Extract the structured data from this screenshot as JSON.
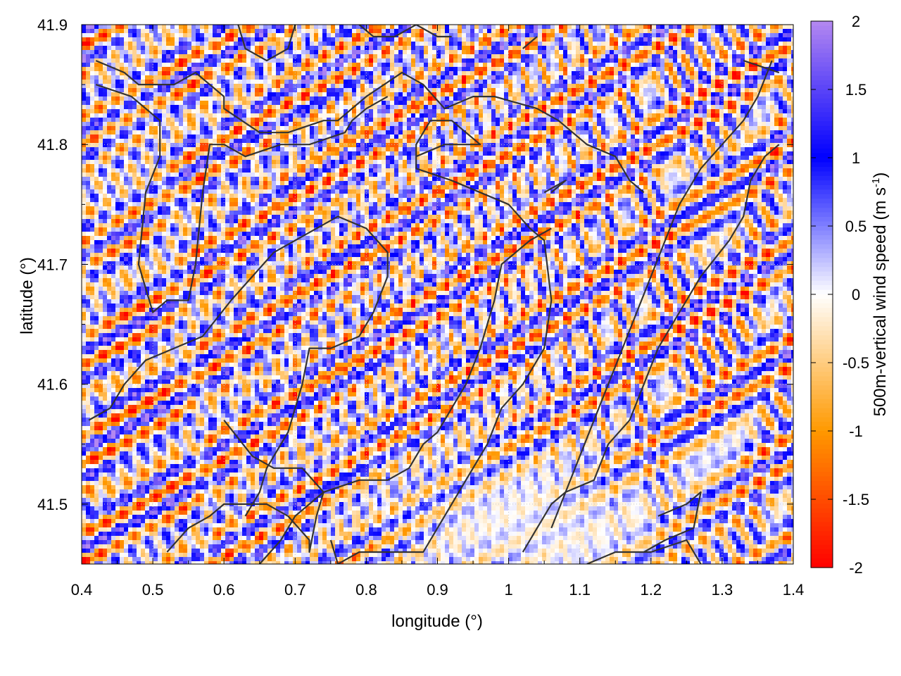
{
  "chart_data": {
    "type": "heatmap",
    "title": "",
    "xlabel": "longitude (°)",
    "ylabel": "latitude (°)",
    "xlim": [
      0.4,
      1.4
    ],
    "ylim": [
      41.45,
      41.9
    ],
    "xticks": [
      0.4,
      0.5,
      0.6,
      0.7,
      0.8,
      0.9,
      1.0,
      1.1,
      1.2,
      1.3,
      1.4
    ],
    "xtick_labels": [
      "0.4",
      "0.5",
      "0.6",
      "0.7",
      "0.8",
      "0.9",
      "1",
      "1.1",
      "1.2",
      "1.3",
      "1.4"
    ],
    "yticks": [
      41.5,
      41.6,
      41.7,
      41.8,
      41.9
    ],
    "ytick_labels": [
      "41.5",
      "41.6",
      "41.7",
      "41.8",
      "41.9"
    ],
    "colorbar": {
      "label_main": "500m-vertical wind speed (m s",
      "label_sup": "-1",
      "label_end": ")",
      "range": [
        -2,
        2
      ],
      "ticks": [
        2,
        1.5,
        1,
        0.5,
        0,
        -0.5,
        -1,
        -1.5,
        -2
      ],
      "tick_labels": [
        "2",
        "1.5",
        "1",
        "0.5",
        "0",
        "-0.5",
        "-1",
        "-1.5",
        "-2"
      ],
      "stops": [
        {
          "value": -2,
          "color": "#ff0000"
        },
        {
          "value": -1,
          "color": "#ff9900"
        },
        {
          "value": 0,
          "color": "#ffffff"
        },
        {
          "value": 1,
          "color": "#0000ff"
        },
        {
          "value": 2,
          "color": "#b488f0"
        }
      ]
    },
    "grid": "dotted, light gray",
    "field_note": "noisy vertical wind field alternating between about -2 and +2 m/s; weak values near 0 in the lower-right lowland",
    "calm_region_center": [
      1.04,
      41.48
    ],
    "coastlines": [
      [
        [
          0.42,
          41.87
        ],
        [
          0.46,
          41.86
        ],
        [
          0.48,
          41.85
        ],
        [
          0.53,
          41.85
        ],
        [
          0.56,
          41.86
        ],
        [
          0.6,
          41.84
        ],
        [
          0.6,
          41.83
        ],
        [
          0.65,
          41.81
        ],
        [
          0.69,
          41.81
        ],
        [
          0.74,
          41.82
        ],
        [
          0.76,
          41.82
        ],
        [
          0.8,
          41.84
        ],
        [
          0.85,
          41.86
        ],
        [
          0.88,
          41.85
        ],
        [
          0.91,
          41.83
        ],
        [
          0.95,
          41.84
        ],
        [
          0.98,
          41.84
        ],
        [
          1.04,
          41.83
        ],
        [
          1.07,
          41.82
        ],
        [
          1.11,
          41.8
        ],
        [
          1.15,
          41.79
        ],
        [
          1.17,
          41.77
        ],
        [
          1.19,
          41.76
        ]
      ],
      [
        [
          0.42,
          41.85
        ],
        [
          0.47,
          41.84
        ],
        [
          0.51,
          41.82
        ],
        [
          0.51,
          41.79
        ],
        [
          0.49,
          41.76
        ],
        [
          0.48,
          41.7
        ],
        [
          0.5,
          41.66
        ],
        [
          0.52,
          41.67
        ],
        [
          0.55,
          41.67
        ],
        [
          0.56,
          41.7
        ],
        [
          0.57,
          41.76
        ],
        [
          0.58,
          41.8
        ],
        [
          0.6,
          41.8
        ],
        [
          0.63,
          41.79
        ],
        [
          0.68,
          41.8
        ],
        [
          0.72,
          41.8
        ],
        [
          0.77,
          41.81
        ],
        [
          0.78,
          41.82
        ],
        [
          0.8,
          41.83
        ],
        [
          0.83,
          41.84
        ]
      ],
      [
        [
          0.62,
          41.9
        ],
        [
          0.63,
          41.88
        ],
        [
          0.66,
          41.87
        ],
        [
          0.69,
          41.88
        ],
        [
          0.7,
          41.9
        ]
      ],
      [
        [
          0.79,
          41.9
        ],
        [
          0.81,
          41.89
        ],
        [
          0.84,
          41.89
        ],
        [
          0.87,
          41.9
        ],
        [
          0.9,
          41.89
        ],
        [
          0.92,
          41.89
        ]
      ],
      [
        [
          1.02,
          41.88
        ],
        [
          1.04,
          41.89
        ]
      ],
      [
        [
          1.33,
          41.87
        ],
        [
          1.38,
          41.86
        ]
      ],
      [
        [
          0.87,
          41.79
        ],
        [
          0.91,
          41.8
        ],
        [
          0.96,
          41.8
        ],
        [
          0.92,
          41.82
        ],
        [
          0.89,
          41.82
        ],
        [
          0.87,
          41.8
        ],
        [
          0.87,
          41.78
        ],
        [
          0.92,
          41.77
        ],
        [
          0.96,
          41.76
        ],
        [
          1.0,
          41.75
        ],
        [
          1.03,
          41.73
        ],
        [
          1.05,
          41.72
        ],
        [
          1.06,
          41.67
        ],
        [
          1.05,
          41.63
        ],
        [
          1.02,
          41.6
        ],
        [
          0.99,
          41.58
        ],
        [
          0.97,
          41.55
        ],
        [
          0.94,
          41.52
        ],
        [
          0.91,
          41.49
        ],
        [
          0.88,
          41.46
        ],
        [
          0.83,
          41.46
        ],
        [
          0.79,
          41.46
        ],
        [
          0.76,
          41.45
        ],
        [
          0.75,
          41.47
        ]
      ],
      [
        [
          0.6,
          41.57
        ],
        [
          0.64,
          41.54
        ],
        [
          0.67,
          41.53
        ],
        [
          0.71,
          41.53
        ],
        [
          0.74,
          41.51
        ],
        [
          0.73,
          41.49
        ],
        [
          0.72,
          41.46
        ],
        [
          0.72,
          41.47
        ],
        [
          0.69,
          41.49
        ],
        [
          0.66,
          41.5
        ],
        [
          0.62,
          41.5
        ],
        [
          0.6,
          41.5
        ],
        [
          0.58,
          41.49
        ],
        [
          0.55,
          41.48
        ],
        [
          0.52,
          41.46
        ]
      ],
      [
        [
          0.63,
          41.49
        ],
        [
          0.65,
          41.51
        ],
        [
          0.66,
          41.53
        ],
        [
          0.69,
          41.56
        ],
        [
          0.71,
          41.6
        ],
        [
          0.72,
          41.63
        ],
        [
          0.75,
          41.63
        ],
        [
          0.79,
          41.64
        ],
        [
          0.81,
          41.66
        ],
        [
          0.83,
          41.69
        ],
        [
          0.83,
          41.71
        ],
        [
          0.8,
          41.73
        ],
        [
          0.76,
          41.74
        ],
        [
          0.73,
          41.73
        ],
        [
          0.7,
          41.72
        ],
        [
          0.67,
          41.71
        ],
        [
          0.64,
          41.69
        ],
        [
          0.61,
          41.67
        ],
        [
          0.57,
          41.64
        ],
        [
          0.53,
          41.63
        ],
        [
          0.49,
          41.62
        ],
        [
          0.46,
          41.6
        ],
        [
          0.44,
          41.58
        ],
        [
          0.41,
          41.57
        ]
      ],
      [
        [
          0.65,
          41.45
        ],
        [
          0.68,
          41.47
        ],
        [
          0.7,
          41.49
        ],
        [
          0.72,
          41.5
        ],
        [
          0.74,
          41.51
        ],
        [
          0.79,
          41.52
        ],
        [
          0.83,
          41.52
        ],
        [
          0.86,
          41.53
        ],
        [
          0.88,
          41.55
        ],
        [
          0.9,
          41.56
        ],
        [
          0.92,
          41.58
        ],
        [
          0.94,
          41.6
        ],
        [
          0.96,
          41.63
        ],
        [
          0.98,
          41.67
        ],
        [
          0.99,
          41.7
        ],
        [
          1.03,
          41.72
        ],
        [
          1.06,
          41.73
        ]
      ],
      [
        [
          1.06,
          41.76
        ],
        [
          1.08,
          41.77
        ],
        [
          1.05,
          41.76
        ]
      ],
      [
        [
          1.02,
          41.46
        ],
        [
          1.04,
          41.48
        ],
        [
          1.06,
          41.5
        ],
        [
          1.08,
          41.51
        ],
        [
          1.12,
          41.52
        ],
        [
          1.14,
          41.55
        ],
        [
          1.17,
          41.57
        ],
        [
          1.19,
          41.6
        ],
        [
          1.21,
          41.63
        ],
        [
          1.24,
          41.66
        ],
        [
          1.27,
          41.69
        ],
        [
          1.31,
          41.72
        ],
        [
          1.33,
          41.74
        ],
        [
          1.34,
          41.77
        ],
        [
          1.36,
          41.79
        ],
        [
          1.38,
          41.8
        ]
      ],
      [
        [
          1.21,
          41.49
        ],
        [
          1.25,
          41.5
        ],
        [
          1.27,
          41.51
        ],
        [
          1.26,
          41.48
        ],
        [
          1.22,
          41.47
        ],
        [
          1.19,
          41.46
        ]
      ],
      [
        [
          1.11,
          41.45
        ],
        [
          1.15,
          41.46
        ],
        [
          1.2,
          41.46
        ],
        [
          1.25,
          41.47
        ],
        [
          1.27,
          41.45
        ]
      ],
      [
        [
          1.06,
          41.48
        ],
        [
          1.08,
          41.51
        ],
        [
          1.1,
          41.54
        ],
        [
          1.12,
          41.57
        ],
        [
          1.14,
          41.6
        ],
        [
          1.16,
          41.63
        ],
        [
          1.18,
          41.66
        ],
        [
          1.2,
          41.69
        ],
        [
          1.22,
          41.72
        ],
        [
          1.24,
          41.75
        ],
        [
          1.27,
          41.78
        ],
        [
          1.3,
          41.8
        ],
        [
          1.33,
          41.82
        ],
        [
          1.35,
          41.84
        ],
        [
          1.37,
          41.87
        ]
      ]
    ]
  }
}
